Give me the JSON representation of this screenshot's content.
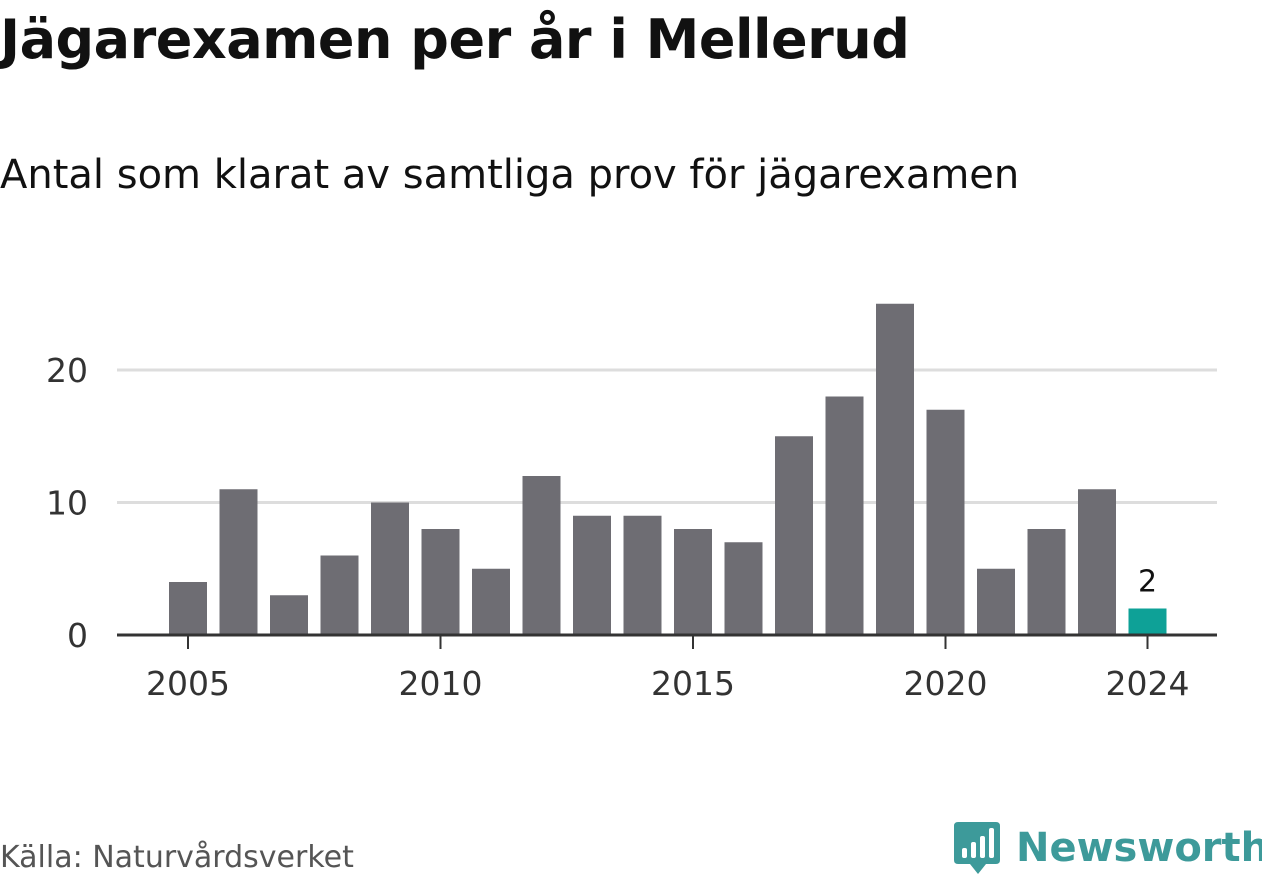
{
  "title": "Jägarexamen per år i Mellerud",
  "subtitle": "Antal som klarat av samtliga prov för jägarexamen",
  "source": "Källa: Naturvårdsverket",
  "brand": {
    "name": "Newsworthy",
    "icon": "newsworthy-logo-icon",
    "color": "#3d9a9a"
  },
  "colors": {
    "bar": "#6e6d73",
    "highlight": "#0ea197",
    "grid": "#dddddd",
    "axis": "#333333"
  },
  "chart_data": {
    "type": "bar",
    "title": "Jägarexamen per år i Mellerud",
    "subtitle": "Antal som klarat av samtliga prov för jägarexamen",
    "xlabel": "",
    "ylabel": "",
    "categories": [
      2005,
      2006,
      2007,
      2008,
      2009,
      2010,
      2011,
      2012,
      2013,
      2014,
      2015,
      2016,
      2017,
      2018,
      2019,
      2020,
      2021,
      2022,
      2023,
      2024
    ],
    "values": [
      4,
      11,
      3,
      6,
      10,
      8,
      5,
      12,
      9,
      9,
      8,
      7,
      15,
      18,
      25,
      17,
      5,
      8,
      11,
      2
    ],
    "x_tick_labels": [
      "2005",
      "2010",
      "2015",
      "2020",
      "2024"
    ],
    "y_ticks": [
      0,
      10,
      20
    ],
    "ylim": [
      0,
      25
    ],
    "highlight": {
      "category": 2024,
      "label": "2"
    },
    "grid": true,
    "legend": "none"
  }
}
